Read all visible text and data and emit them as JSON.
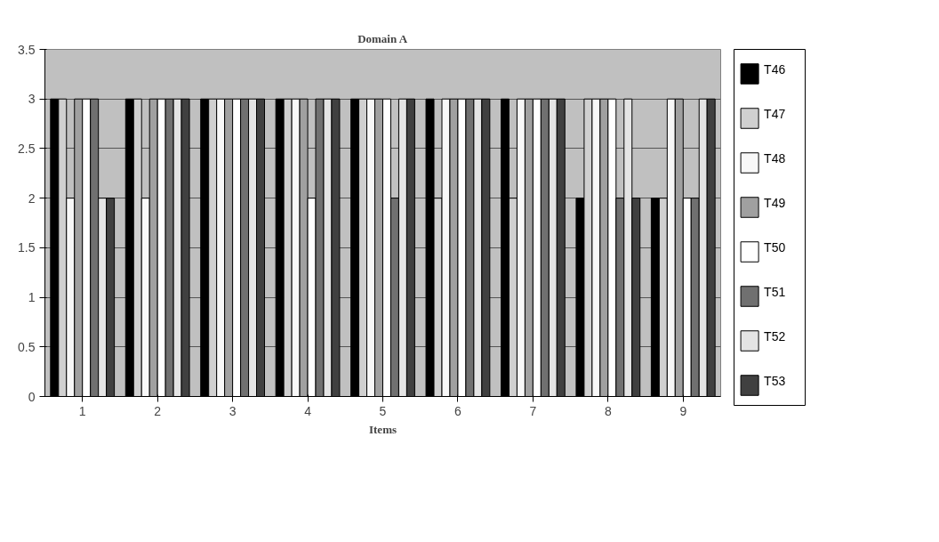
{
  "chart_data": {
    "type": "bar",
    "title": "Domain A",
    "xlabel": "Items",
    "categories": [
      "1",
      "2",
      "3",
      "4",
      "5",
      "6",
      "7",
      "8",
      "9"
    ],
    "ylim": [
      0,
      3.5
    ],
    "yticks": [
      0,
      0.5,
      1,
      1.5,
      2,
      2.5,
      3,
      3.5
    ],
    "grid": "y",
    "legend": "right",
    "series": [
      {
        "name": "T46",
        "color": "#000000",
        "values": [
          3,
          3,
          3,
          3,
          3,
          3,
          3,
          2,
          2
        ]
      },
      {
        "name": "T47",
        "color": "#d0d0d0",
        "values": [
          3,
          3,
          3,
          3,
          3,
          2,
          2,
          3,
          2
        ]
      },
      {
        "name": "T48",
        "color": "#f8f8f8",
        "values": [
          2,
          2,
          3,
          3,
          3,
          3,
          3,
          3,
          3
        ]
      },
      {
        "name": "T49",
        "color": "#a0a0a0",
        "values": [
          3,
          3,
          3,
          3,
          3,
          3,
          3,
          3,
          3
        ]
      },
      {
        "name": "T50",
        "color": "#ffffff",
        "values": [
          3,
          3,
          3,
          2,
          3,
          3,
          3,
          3,
          2
        ]
      },
      {
        "name": "T51",
        "color": "#707070",
        "values": [
          3,
          3,
          3,
          3,
          2,
          3,
          3,
          2,
          2
        ]
      },
      {
        "name": "T52",
        "color": "#e4e4e4",
        "values": [
          2,
          3,
          3,
          3,
          3,
          3,
          3,
          3,
          3
        ]
      },
      {
        "name": "T53",
        "color": "#404040",
        "values": [
          2,
          3,
          3,
          3,
          3,
          3,
          3,
          2,
          3
        ]
      }
    ]
  }
}
